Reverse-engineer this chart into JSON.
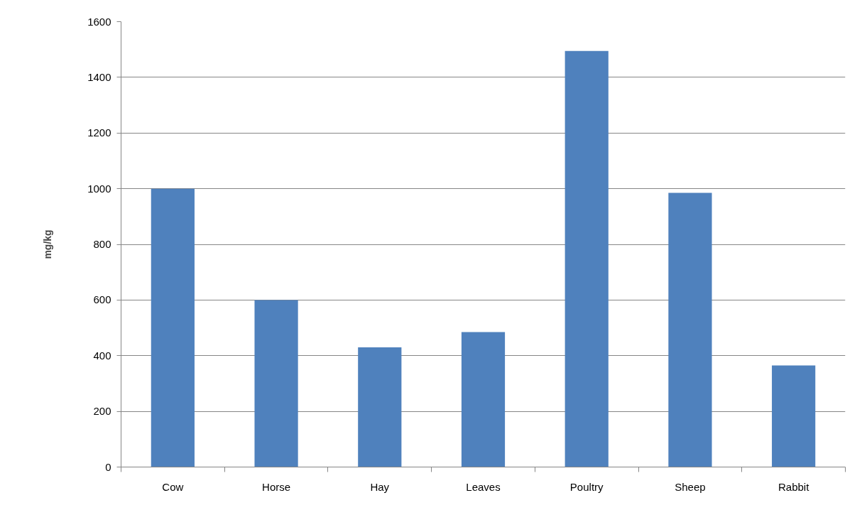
{
  "chart_data": {
    "type": "bar",
    "ylabel": "mg/kg",
    "categories": [
      "Cow",
      "Horse",
      "Hay",
      "Leaves",
      "Poultry",
      "Sheep",
      "Rabbit"
    ],
    "values": [
      1000,
      600,
      430,
      485,
      1495,
      985,
      365
    ],
    "color": "#4f81bd",
    "ylim": [
      0,
      1600
    ],
    "yticks": [
      0,
      200,
      400,
      600,
      800,
      1000,
      1200,
      1400,
      1600
    ],
    "grid": "y"
  }
}
